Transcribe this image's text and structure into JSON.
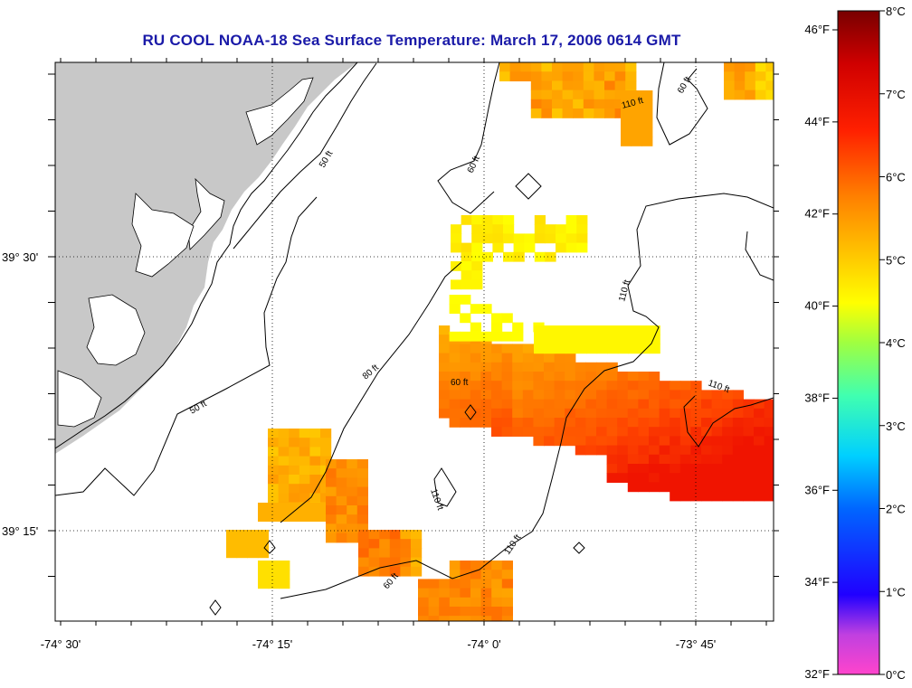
{
  "title": "RU COOL  NOAA-18  Sea Surface Temperature:  March 17, 2006 0614 GMT",
  "lon_ticks": [
    "-74° 30'",
    "-74° 15'",
    "-74° 0'",
    "-73° 45'"
  ],
  "lat_ticks": [
    "39° 30'",
    "39° 15'"
  ],
  "contour_labels": [
    "50 ft",
    "50 ft",
    "60 ft",
    "60 ft",
    "60 ft",
    "60 ft",
    "80 ft",
    "110 ft",
    "110 ft",
    "110 ft",
    "110 ft",
    "110 ft"
  ],
  "colorbar": {
    "fahrenheit_labels": [
      "46°F",
      "44°F",
      "42°F",
      "40°F",
      "38°F",
      "36°F",
      "34°F",
      "32°F"
    ],
    "celsius_labels": [
      "8°C",
      "7°C",
      "6°C",
      "5°C",
      "4°C",
      "3°C",
      "2°C",
      "1°C",
      "0°C"
    ]
  },
  "colors": {
    "land": "#c8c8c8",
    "title": "#1a1aa8",
    "sst_yellow": "#ffff00",
    "sst_orange": "#ff9000",
    "sst_red": "#ff2000"
  }
}
